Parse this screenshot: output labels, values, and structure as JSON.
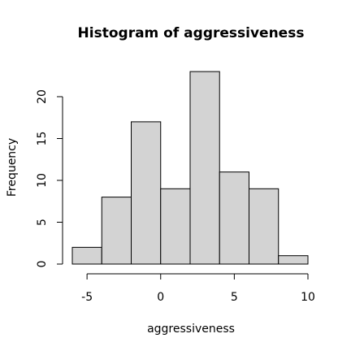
{
  "chart_data": {
    "type": "bar",
    "title": "Histogram of aggressiveness",
    "xlabel": "aggressiveness",
    "ylabel": "Frequency",
    "bins": [
      {
        "start": -6,
        "end": -4,
        "count": 2
      },
      {
        "start": -4,
        "end": -2,
        "count": 8
      },
      {
        "start": -2,
        "end": 0,
        "count": 17
      },
      {
        "start": 0,
        "end": 2,
        "count": 9
      },
      {
        "start": 2,
        "end": 4,
        "count": 23
      },
      {
        "start": 4,
        "end": 6,
        "count": 11
      },
      {
        "start": 6,
        "end": 8,
        "count": 9
      },
      {
        "start": 8,
        "end": 10,
        "count": 1
      }
    ],
    "xticks": [
      -5,
      0,
      5,
      10
    ],
    "yticks": [
      0,
      5,
      10,
      15,
      20
    ],
    "xlim": [
      -6,
      10
    ],
    "ylim": [
      0,
      23
    ],
    "bar_color": "#d3d3d3",
    "grid": false
  }
}
